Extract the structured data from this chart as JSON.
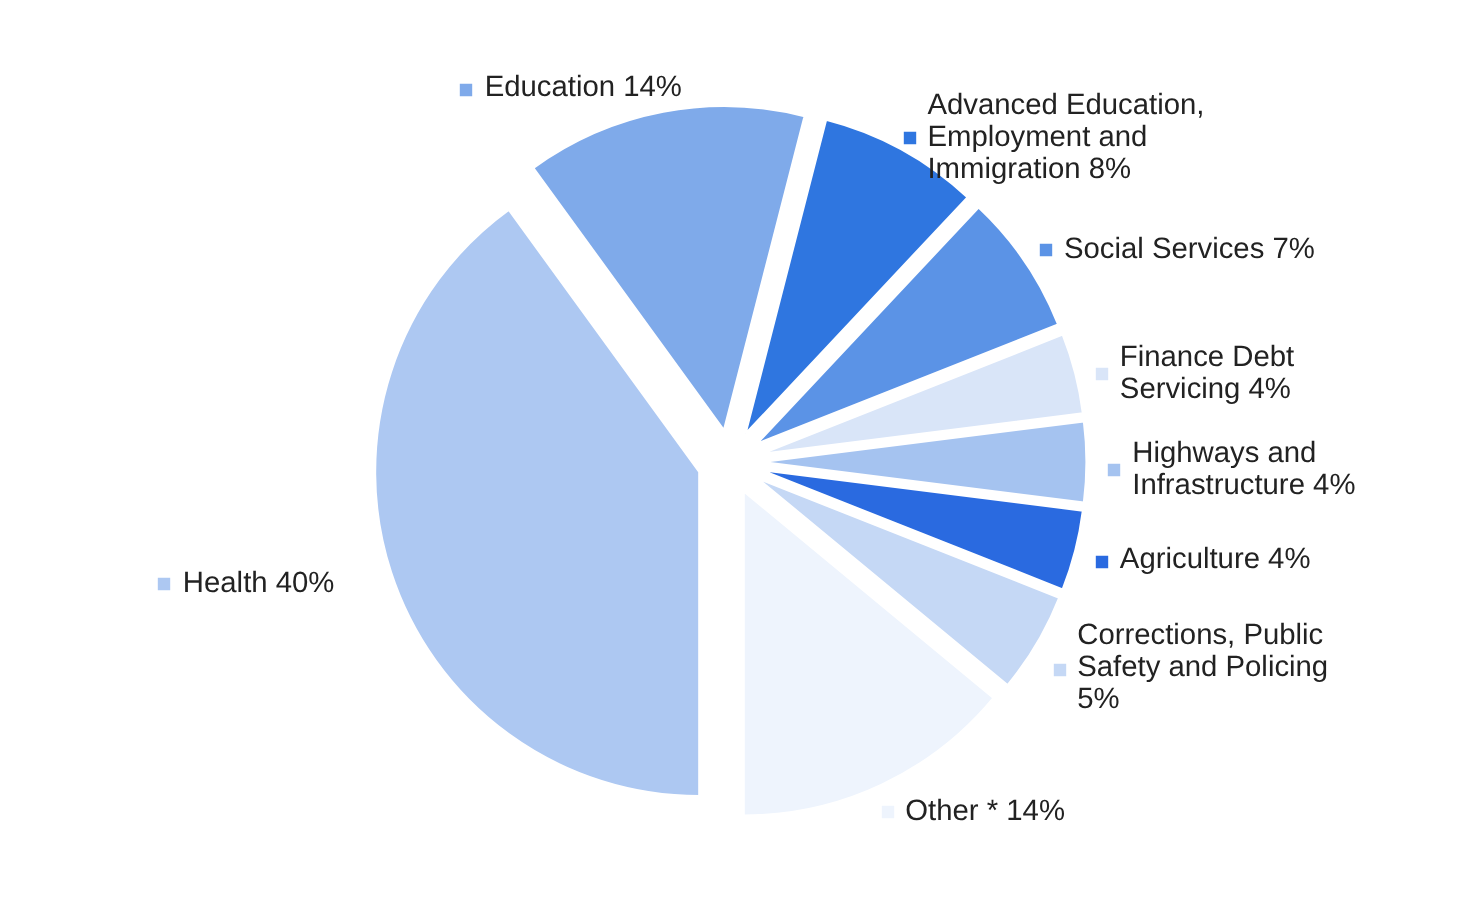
{
  "chart_data": {
    "type": "pie",
    "categories": [
      "Education 14%",
      "Advanced Education, Employment and Immigration 8%",
      "Social Services 7%",
      "Finance Debt Servicing 4%",
      "Highways and Infrastructure 4%",
      "Agriculture 4%",
      "Corrections, Public Safety and Policing 5%",
      "Other * 14%",
      "Health 40%"
    ],
    "values": [
      14,
      8,
      7,
      4,
      4,
      4,
      5,
      14,
      40
    ],
    "colors": [
      "#7faaea",
      "#2f76e0",
      "#5b93e6",
      "#d9e5f8",
      "#a5c3f0",
      "#2a6ae0",
      "#c5d8f5",
      "#eef4fd",
      "#adc8f2"
    ],
    "legend": "right"
  }
}
